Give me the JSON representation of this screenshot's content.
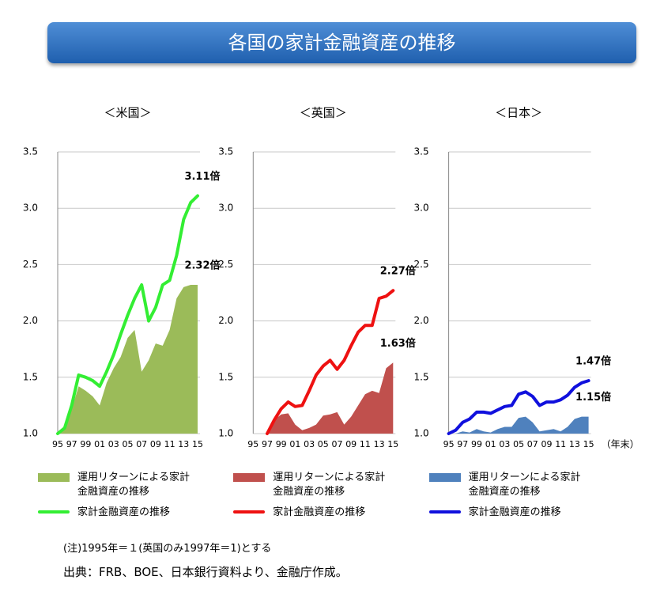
{
  "title": "各国の家計金融資産の推移",
  "chart_data": [
    {
      "type": "area_line",
      "title": "＜米国＞",
      "categories": [
        "95",
        null,
        "97",
        null,
        "99",
        null,
        "01",
        null,
        "03",
        null,
        "05",
        null,
        "07",
        null,
        "09",
        null,
        "11",
        null,
        "13",
        null,
        "15"
      ],
      "ylim": [
        1,
        3.5
      ],
      "yticks": [
        {
          "value": 1,
          "label": "1.0"
        },
        1.5,
        {
          "value": 2,
          "label": "2.0"
        },
        2.5,
        {
          "value": 3,
          "label": "3.0"
        },
        3.5
      ],
      "grid": true,
      "series": [
        {
          "name": "運用リターンによる家計\n金融資産の推移",
          "style": "area",
          "color": "#9bbb59",
          "values": [
            1.0,
            1.05,
            1.22,
            1.42,
            1.38,
            1.33,
            1.25,
            1.45,
            1.58,
            1.68,
            1.85,
            1.92,
            1.55,
            1.65,
            1.8,
            1.78,
            1.92,
            2.2,
            2.3,
            2.32,
            2.32
          ],
          "end_label": "2.32倍"
        },
        {
          "name": "家計金融資産の推移",
          "style": "line",
          "color": "#33ee33",
          "values": [
            1.0,
            1.05,
            1.25,
            1.52,
            1.5,
            1.47,
            1.42,
            1.55,
            1.7,
            1.88,
            2.05,
            2.2,
            2.32,
            2.0,
            2.12,
            2.32,
            2.36,
            2.58,
            2.9,
            3.05,
            3.11
          ],
          "end_label": "3.11倍"
        }
      ]
    },
    {
      "type": "area_line",
      "title": "＜英国＞",
      "categories": [
        "95",
        null,
        "97",
        null,
        "99",
        null,
        "01",
        null,
        "03",
        null,
        "05",
        null,
        "07",
        null,
        "09",
        null,
        "11",
        null,
        "13",
        null,
        "15"
      ],
      "ylim": [
        1,
        3.5
      ],
      "yticks": [
        {
          "value": 1,
          "label": "1.0"
        },
        1.5,
        {
          "value": 2,
          "label": "2.0"
        },
        2.5,
        {
          "value": 3,
          "label": "3.0"
        },
        3.5
      ],
      "grid": true,
      "series": [
        {
          "name": "運用リターンによる家計\n金融資産の推移",
          "style": "area",
          "color": "#c0504d",
          "values": [
            null,
            null,
            1.0,
            1.12,
            1.17,
            1.18,
            1.08,
            1.03,
            1.05,
            1.08,
            1.16,
            1.17,
            1.19,
            1.08,
            1.15,
            1.25,
            1.35,
            1.38,
            1.36,
            1.58,
            1.63
          ],
          "end_label": "1.63倍"
        },
        {
          "name": "家計金融資産の推移",
          "style": "line",
          "color": "#ee1111",
          "values": [
            null,
            null,
            1.0,
            1.12,
            1.22,
            1.28,
            1.24,
            1.25,
            1.38,
            1.52,
            1.6,
            1.65,
            1.57,
            1.65,
            1.78,
            1.9,
            1.96,
            1.96,
            2.2,
            2.22,
            2.27
          ],
          "end_label": "2.27倍"
        }
      ]
    },
    {
      "type": "area_line",
      "title": "＜日本＞",
      "categories": [
        "95",
        null,
        "97",
        null,
        "99",
        null,
        "01",
        null,
        "03",
        null,
        "05",
        null,
        "07",
        null,
        "09",
        null,
        "11",
        null,
        "13",
        null,
        "15"
      ],
      "x_label": "（年末）",
      "ylim": [
        1,
        3.5
      ],
      "yticks": [
        {
          "value": 1,
          "label": "1.0"
        },
        1.5,
        {
          "value": 2,
          "label": "2.0"
        },
        2.5,
        {
          "value": 3,
          "label": "3.0"
        },
        3.5
      ],
      "grid": true,
      "series": [
        {
          "name": "運用リターンによる家計\n金融資産の推移",
          "style": "area",
          "color": "#4f81bd",
          "values": [
            1.0,
            1.0,
            1.02,
            1.01,
            1.04,
            1.02,
            1.01,
            1.04,
            1.06,
            1.06,
            1.14,
            1.15,
            1.1,
            1.02,
            1.03,
            1.04,
            1.02,
            1.06,
            1.13,
            1.15,
            1.15
          ],
          "end_label": "1.15倍"
        },
        {
          "name": "家計金融資産の推移",
          "style": "line",
          "color": "#1010dd",
          "values": [
            1.0,
            1.03,
            1.1,
            1.13,
            1.19,
            1.19,
            1.18,
            1.21,
            1.24,
            1.25,
            1.35,
            1.37,
            1.33,
            1.25,
            1.28,
            1.28,
            1.3,
            1.34,
            1.41,
            1.45,
            1.47
          ],
          "end_label": "1.47倍"
        }
      ]
    }
  ],
  "notes": [
    "(注)1995年＝１(英国のみ1997年＝1)とする",
    "出典：FRB、BOE、日本銀行資料より、金融庁作成。"
  ]
}
